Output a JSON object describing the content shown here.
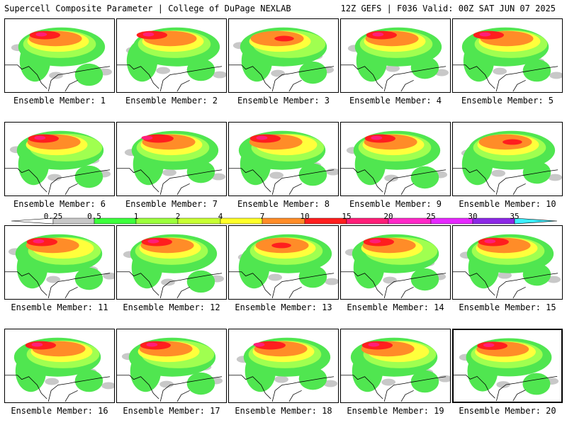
{
  "header": {
    "title": "Supercell Composite Parameter | College of DuPage NEXLAB",
    "run_info": "12Z GEFS | F036 Valid: 00Z SAT JUN 07 2025"
  },
  "legend": {
    "ticks": [
      "0.25",
      "0.5",
      "1",
      "2",
      "4",
      "7",
      "10",
      "15",
      "20",
      "25",
      "30",
      "35"
    ],
    "colors": [
      "#c8c8c8",
      "#3cff3c",
      "#9cff3c",
      "#c8ff32",
      "#ffff28",
      "#ff8c28",
      "#ff1e1e",
      "#ff1e78",
      "#ff28c8",
      "#e628ff",
      "#8c28e6",
      "#b45aff",
      "#3cf0ff"
    ]
  },
  "map_colors": {
    "grey": "#c8c8c8",
    "green": "#50e650",
    "lightgreen": "#a0ff50",
    "yellow": "#ffff3c",
    "orange": "#ff8c28",
    "red": "#ff1e1e",
    "magenta": "#ff1e78"
  },
  "members": [
    {
      "label": "Ensemble Member: 1",
      "intensity": 3
    },
    {
      "label": "Ensemble Member: 2",
      "intensity": 3
    },
    {
      "label": "Ensemble Member: 3",
      "intensity": 2
    },
    {
      "label": "Ensemble Member: 4",
      "intensity": 3
    },
    {
      "label": "Ensemble Member: 5",
      "intensity": 3
    },
    {
      "label": "Ensemble Member: 6",
      "intensity": 3
    },
    {
      "label": "Ensemble Member: 7",
      "intensity": 3
    },
    {
      "label": "Ensemble Member: 8",
      "intensity": 3
    },
    {
      "label": "Ensemble Member: 9",
      "intensity": 3
    },
    {
      "label": "Ensemble Member: 10",
      "intensity": 2
    },
    {
      "label": "Ensemble Member: 11",
      "intensity": 3
    },
    {
      "label": "Ensemble Member: 12",
      "intensity": 3
    },
    {
      "label": "Ensemble Member: 13",
      "intensity": 2
    },
    {
      "label": "Ensemble Member: 14",
      "intensity": 3
    },
    {
      "label": "Ensemble Member: 15",
      "intensity": 3
    },
    {
      "label": "Ensemble Member: 16",
      "intensity": 3
    },
    {
      "label": "Ensemble Member: 17",
      "intensity": 3
    },
    {
      "label": "Ensemble Member: 18",
      "intensity": 3
    },
    {
      "label": "Ensemble Member: 19",
      "intensity": 3
    },
    {
      "label": "Ensemble Member: 20",
      "intensity": 3,
      "highlighted": true
    }
  ]
}
